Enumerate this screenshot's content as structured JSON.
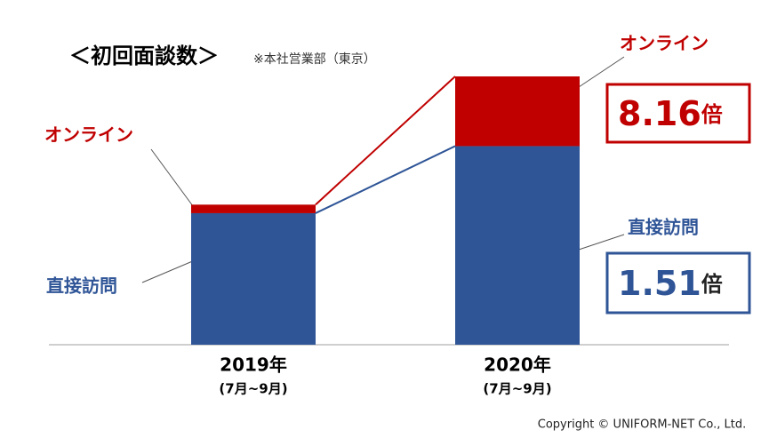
{
  "chart_data": {
    "type": "stacked_bar",
    "title": "＜初回面談数＞",
    "subtitle": "※本社営業部（東京）",
    "categories": [
      "2019年",
      "2020年"
    ],
    "category_sublabels": [
      "(7月~9月)",
      "(7月~9月)"
    ],
    "series": [
      {
        "name": "直接訪問",
        "color": "#2f5597",
        "values": [
          100,
          151
        ]
      },
      {
        "name": "オンライン",
        "color": "#c00000",
        "values": [
          6.5,
          53
        ]
      }
    ],
    "ylim": [
      0,
      204
    ],
    "annotations": [
      {
        "text": "8.16",
        "unit": "倍",
        "color": "#c00000"
      },
      {
        "text": "1.51",
        "unit": "倍",
        "color": "#2f5597"
      }
    ],
    "footer": "Copyright © UNIFORM-NET Co., Ltd."
  }
}
